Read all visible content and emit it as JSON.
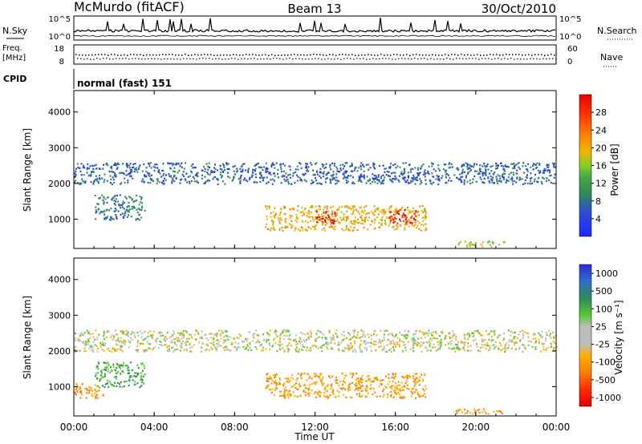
{
  "header": {
    "station": "McMurdo (fitACF)",
    "beam": "Beam 13",
    "date": "30/Oct/2010"
  },
  "noise_panel": {
    "left_label": "N.Sky",
    "right_label": "N.Search",
    "left_ticks": [
      "10^5",
      "10^0"
    ],
    "right_ticks": [
      "10^5",
      "10^0"
    ]
  },
  "freq_panel": {
    "left_label_1": "Freq.",
    "left_label_2": "[MHz]",
    "right_label": "Nave",
    "left_ticks": [
      "18",
      "8"
    ],
    "right_ticks": [
      "60",
      "0"
    ]
  },
  "cpid": {
    "label": "CPID",
    "value": "normal (fast) 151"
  },
  "chart_data": [
    {
      "type": "heatmap",
      "name": "power",
      "ylabel": "Slant Range [km]",
      "ylim": [
        180,
        4600
      ],
      "yticks": [
        "1000",
        "2000",
        "3000",
        "4000"
      ],
      "ytick_values": [
        1000,
        2000,
        3000,
        4000
      ],
      "colorbar": {
        "label": "Power [dB]",
        "range": [
          0,
          32
        ],
        "ticks": [
          "4",
          "8",
          "12",
          "16",
          "20",
          "24",
          "28"
        ],
        "tick_values": [
          4,
          8,
          12,
          16,
          20,
          24,
          28
        ]
      },
      "regions": [
        {
          "x": [
            0,
            24
          ],
          "y": [
            2000,
            2600
          ],
          "value": 6
        },
        {
          "x": [
            1,
            3.5
          ],
          "y": [
            1000,
            1700
          ],
          "value": 8
        },
        {
          "x": [
            9.5,
            17.5
          ],
          "y": [
            700,
            1400
          ],
          "value": 20
        },
        {
          "x": [
            12,
            13
          ],
          "y": [
            900,
            1300
          ],
          "value": 28
        },
        {
          "x": [
            15.5,
            17
          ],
          "y": [
            900,
            1300
          ],
          "value": 28
        },
        {
          "x": [
            19,
            21.5
          ],
          "y": [
            250,
            400
          ],
          "value": 16
        }
      ]
    },
    {
      "type": "heatmap",
      "name": "velocity",
      "ylabel": "Slant Range [km]",
      "ylim": [
        180,
        4600
      ],
      "yticks": [
        "1000",
        "2000",
        "3000",
        "4000"
      ],
      "ytick_values": [
        1000,
        2000,
        3000,
        4000
      ],
      "colorbar": {
        "label": "Velocity [m s⁻¹]",
        "ticks": [
          "1000",
          "500",
          "100",
          "25",
          "-25",
          "-100",
          "-500",
          "-1000"
        ],
        "tick_values": [
          1000,
          500,
          100,
          25,
          -25,
          -100,
          -500,
          -1000
        ]
      },
      "regions": [
        {
          "x": [
            0,
            24
          ],
          "y": [
            2000,
            2600
          ],
          "value": 0
        },
        {
          "x": [
            1,
            3.5
          ],
          "y": [
            1000,
            1700
          ],
          "value": 100
        },
        {
          "x": [
            9.5,
            17.5
          ],
          "y": [
            700,
            1400
          ],
          "value": -100
        },
        {
          "x": [
            0,
            1.5
          ],
          "y": [
            700,
            1100
          ],
          "value": -100
        },
        {
          "x": [
            19,
            21.5
          ],
          "y": [
            250,
            400
          ],
          "value": -100
        }
      ]
    }
  ],
  "xaxis": {
    "label": "Time UT",
    "ticks": [
      "00:00",
      "04:00",
      "08:00",
      "12:00",
      "16:00",
      "20:00",
      "00:00"
    ],
    "tick_values": [
      0,
      4,
      8,
      12,
      16,
      20,
      24
    ],
    "range": [
      0,
      24
    ]
  },
  "colors": {
    "power_scale": [
      "#1e28ff",
      "#2c4fd0",
      "#2e8b57",
      "#44aa44",
      "#88cc22",
      "#f0b400",
      "#ff8000",
      "#ff3300",
      "#e60000"
    ],
    "velocity_scale": [
      "#2b2bd6",
      "#2e6fc8",
      "#2e8b57",
      "#55cc33",
      "#bdbdbd",
      "#ffb000",
      "#ff7f00",
      "#ff2b00",
      "#e60000"
    ]
  }
}
